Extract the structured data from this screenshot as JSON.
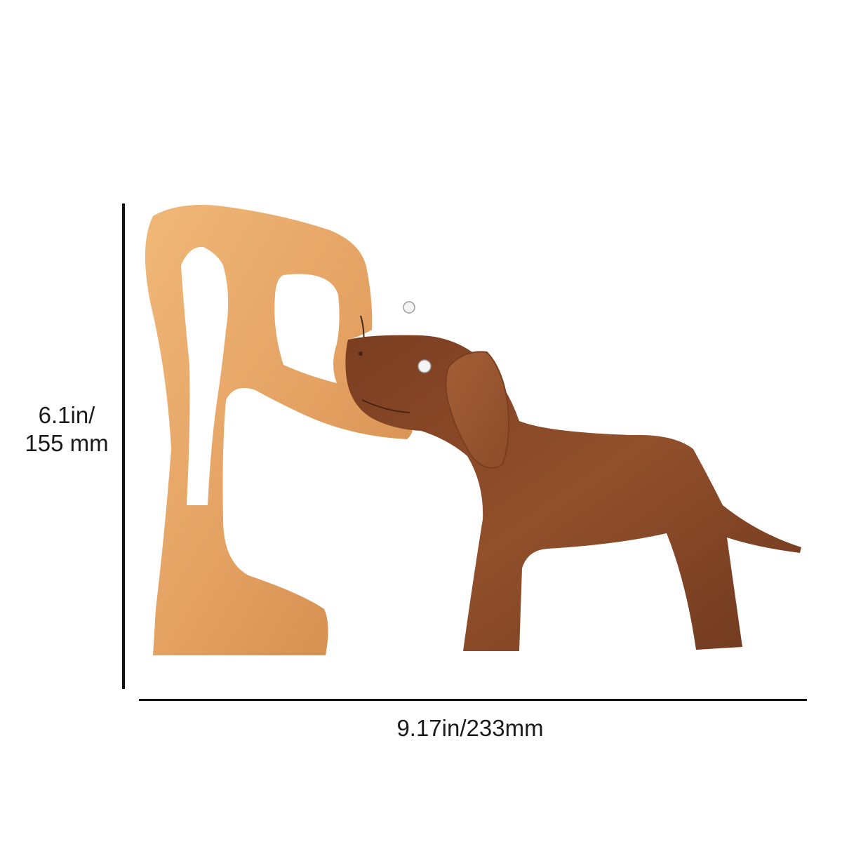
{
  "product": {
    "figure_name": "wooden person figure",
    "dog_name": "wooden dog figure",
    "colors": {
      "light_wood": "#e8a86a",
      "light_wood_shade": "#d28b4c",
      "dark_wood": "#8a4b2a",
      "dark_wood_shade": "#6c361e",
      "eye": "#f4f4f4"
    }
  },
  "dimensions": {
    "height_line1": "6.1in/",
    "height_line2": "155 mm",
    "width_text": "9.17in/233mm"
  }
}
